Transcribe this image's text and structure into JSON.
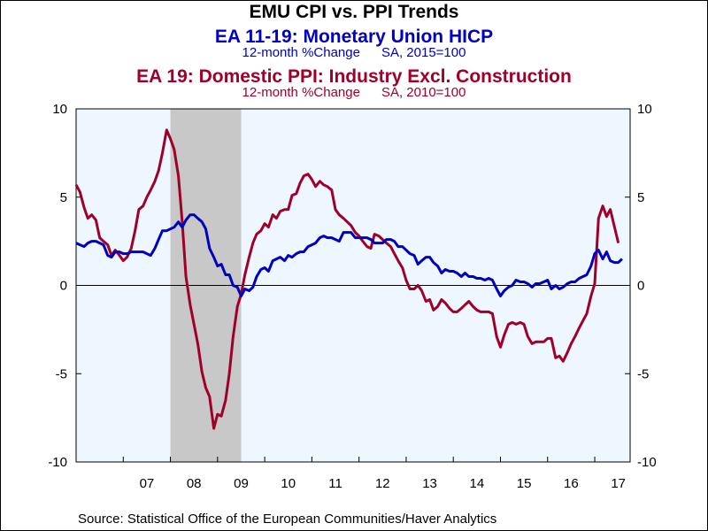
{
  "chart_data": {
    "type": "line",
    "title": "EMU CPI vs. PPI Trends",
    "series": [
      {
        "name": "EA 11-19: Monetary Union HICP",
        "units": "12-month %Change",
        "adjustment": "SA, 2015=100",
        "color": "#0000c0",
        "points": [
          [
            2006.0,
            2.4
          ],
          [
            2006.08,
            2.3
          ],
          [
            2006.17,
            2.2
          ],
          [
            2006.25,
            2.4
          ],
          [
            2006.33,
            2.5
          ],
          [
            2006.42,
            2.5
          ],
          [
            2006.5,
            2.4
          ],
          [
            2006.58,
            2.3
          ],
          [
            2006.67,
            1.7
          ],
          [
            2006.75,
            1.6
          ],
          [
            2006.83,
            1.9
          ],
          [
            2006.92,
            1.9
          ],
          [
            2007.0,
            1.8
          ],
          [
            2007.08,
            1.8
          ],
          [
            2007.17,
            1.9
          ],
          [
            2007.25,
            1.9
          ],
          [
            2007.33,
            1.9
          ],
          [
            2007.42,
            1.9
          ],
          [
            2007.5,
            1.8
          ],
          [
            2007.58,
            1.7
          ],
          [
            2007.67,
            2.1
          ],
          [
            2007.75,
            2.6
          ],
          [
            2007.83,
            3.1
          ],
          [
            2007.92,
            3.1
          ],
          [
            2008.0,
            3.2
          ],
          [
            2008.08,
            3.3
          ],
          [
            2008.17,
            3.6
          ],
          [
            2008.25,
            3.3
          ],
          [
            2008.33,
            3.7
          ],
          [
            2008.42,
            4.0
          ],
          [
            2008.5,
            4.0
          ],
          [
            2008.58,
            3.8
          ],
          [
            2008.67,
            3.6
          ],
          [
            2008.75,
            3.2
          ],
          [
            2008.83,
            2.1
          ],
          [
            2008.92,
            1.6
          ],
          [
            2009.0,
            1.1
          ],
          [
            2009.08,
            1.2
          ],
          [
            2009.17,
            0.6
          ],
          [
            2009.25,
            0.6
          ],
          [
            2009.33,
            0.0
          ],
          [
            2009.42,
            -0.1
          ],
          [
            2009.5,
            -0.6
          ],
          [
            2009.58,
            -0.2
          ],
          [
            2009.67,
            -0.3
          ],
          [
            2009.75,
            -0.1
          ],
          [
            2009.83,
            0.5
          ],
          [
            2009.92,
            0.9
          ],
          [
            2010.0,
            1.0
          ],
          [
            2010.08,
            0.8
          ],
          [
            2010.17,
            1.4
          ],
          [
            2010.25,
            1.5
          ],
          [
            2010.33,
            1.6
          ],
          [
            2010.42,
            1.4
          ],
          [
            2010.5,
            1.7
          ],
          [
            2010.58,
            1.6
          ],
          [
            2010.67,
            1.8
          ],
          [
            2010.75,
            1.9
          ],
          [
            2010.83,
            1.9
          ],
          [
            2010.92,
            2.2
          ],
          [
            2011.0,
            2.3
          ],
          [
            2011.08,
            2.4
          ],
          [
            2011.17,
            2.7
          ],
          [
            2011.25,
            2.8
          ],
          [
            2011.33,
            2.7
          ],
          [
            2011.42,
            2.7
          ],
          [
            2011.5,
            2.6
          ],
          [
            2011.58,
            2.5
          ],
          [
            2011.67,
            3.0
          ],
          [
            2011.75,
            3.0
          ],
          [
            2011.83,
            3.0
          ],
          [
            2011.92,
            2.7
          ],
          [
            2012.0,
            2.7
          ],
          [
            2012.08,
            2.7
          ],
          [
            2012.17,
            2.7
          ],
          [
            2012.25,
            2.6
          ],
          [
            2012.33,
            2.4
          ],
          [
            2012.42,
            2.4
          ],
          [
            2012.5,
            2.4
          ],
          [
            2012.58,
            2.6
          ],
          [
            2012.67,
            2.6
          ],
          [
            2012.75,
            2.5
          ],
          [
            2012.83,
            2.2
          ],
          [
            2012.92,
            2.2
          ],
          [
            2013.0,
            2.0
          ],
          [
            2013.08,
            1.8
          ],
          [
            2013.17,
            1.7
          ],
          [
            2013.25,
            1.2
          ],
          [
            2013.33,
            1.4
          ],
          [
            2013.42,
            1.6
          ],
          [
            2013.5,
            1.6
          ],
          [
            2013.58,
            1.3
          ],
          [
            2013.67,
            1.1
          ],
          [
            2013.75,
            0.7
          ],
          [
            2013.83,
            0.9
          ],
          [
            2013.92,
            0.8
          ],
          [
            2014.0,
            0.8
          ],
          [
            2014.08,
            0.7
          ],
          [
            2014.17,
            0.5
          ],
          [
            2014.25,
            0.7
          ],
          [
            2014.33,
            0.5
          ],
          [
            2014.42,
            0.5
          ],
          [
            2014.5,
            0.4
          ],
          [
            2014.58,
            0.4
          ],
          [
            2014.67,
            0.3
          ],
          [
            2014.75,
            0.4
          ],
          [
            2014.83,
            0.3
          ],
          [
            2014.92,
            -0.2
          ],
          [
            2015.0,
            -0.6
          ],
          [
            2015.08,
            -0.3
          ],
          [
            2015.17,
            -0.1
          ],
          [
            2015.25,
            0.0
          ],
          [
            2015.33,
            0.3
          ],
          [
            2015.42,
            0.2
          ],
          [
            2015.5,
            0.2
          ],
          [
            2015.58,
            0.1
          ],
          [
            2015.67,
            -0.1
          ],
          [
            2015.75,
            0.1
          ],
          [
            2015.83,
            0.1
          ],
          [
            2015.92,
            0.2
          ],
          [
            2016.0,
            0.3
          ],
          [
            2016.08,
            -0.2
          ],
          [
            2016.17,
            0.0
          ],
          [
            2016.25,
            -0.2
          ],
          [
            2016.33,
            -0.1
          ],
          [
            2016.42,
            0.1
          ],
          [
            2016.5,
            0.2
          ],
          [
            2016.58,
            0.2
          ],
          [
            2016.67,
            0.4
          ],
          [
            2016.75,
            0.5
          ],
          [
            2016.83,
            0.6
          ],
          [
            2016.92,
            1.1
          ],
          [
            2017.0,
            1.8
          ],
          [
            2017.08,
            2.0
          ],
          [
            2017.17,
            1.5
          ],
          [
            2017.25,
            1.9
          ],
          [
            2017.33,
            1.4
          ],
          [
            2017.42,
            1.3
          ],
          [
            2017.5,
            1.3
          ],
          [
            2017.58,
            1.5
          ]
        ]
      },
      {
        "name": "EA 19: Domestic PPI: Industry Excl. Construction",
        "units": "12-month %Change",
        "adjustment": "SA, 2010=100",
        "color": "#a00028",
        "points": [
          [
            2006.0,
            5.7
          ],
          [
            2006.08,
            5.3
          ],
          [
            2006.17,
            4.4
          ],
          [
            2006.25,
            3.8
          ],
          [
            2006.33,
            4.0
          ],
          [
            2006.42,
            3.7
          ],
          [
            2006.5,
            2.7
          ],
          [
            2006.58,
            2.5
          ],
          [
            2006.67,
            2.3
          ],
          [
            2006.75,
            1.7
          ],
          [
            2006.83,
            2.0
          ],
          [
            2006.92,
            1.7
          ],
          [
            2007.0,
            1.4
          ],
          [
            2007.08,
            1.6
          ],
          [
            2007.17,
            2.1
          ],
          [
            2007.25,
            3.1
          ],
          [
            2007.33,
            4.3
          ],
          [
            2007.42,
            4.5
          ],
          [
            2007.5,
            5.0
          ],
          [
            2007.58,
            5.4
          ],
          [
            2007.67,
            5.9
          ],
          [
            2007.75,
            6.5
          ],
          [
            2007.83,
            7.5
          ],
          [
            2007.92,
            8.8
          ],
          [
            2008.0,
            8.3
          ],
          [
            2008.08,
            7.7
          ],
          [
            2008.17,
            6.2
          ],
          [
            2008.25,
            3.6
          ],
          [
            2008.33,
            0.5
          ],
          [
            2008.42,
            -1.1
          ],
          [
            2008.5,
            -2.2
          ],
          [
            2008.58,
            -3.3
          ],
          [
            2008.67,
            -4.9
          ],
          [
            2008.75,
            -5.8
          ],
          [
            2008.83,
            -6.3
          ],
          [
            2008.92,
            -8.1
          ],
          [
            2009.0,
            -7.3
          ],
          [
            2009.08,
            -7.4
          ],
          [
            2009.17,
            -6.5
          ],
          [
            2009.25,
            -5.0
          ],
          [
            2009.33,
            -2.9
          ],
          [
            2009.42,
            -1.2
          ],
          [
            2009.5,
            -0.5
          ],
          [
            2009.58,
            0.6
          ],
          [
            2009.67,
            1.6
          ],
          [
            2009.75,
            2.4
          ],
          [
            2009.83,
            2.9
          ],
          [
            2009.92,
            3.1
          ],
          [
            2010.0,
            3.5
          ],
          [
            2010.08,
            3.3
          ],
          [
            2010.17,
            4.0
          ],
          [
            2010.25,
            3.8
          ],
          [
            2010.33,
            4.2
          ],
          [
            2010.42,
            4.3
          ],
          [
            2010.5,
            4.3
          ],
          [
            2010.58,
            5.1
          ],
          [
            2010.67,
            5.2
          ],
          [
            2010.75,
            5.8
          ],
          [
            2010.83,
            6.2
          ],
          [
            2010.92,
            6.3
          ],
          [
            2011.0,
            6.0
          ],
          [
            2011.08,
            5.6
          ],
          [
            2011.17,
            5.9
          ],
          [
            2011.25,
            5.7
          ],
          [
            2011.33,
            5.6
          ],
          [
            2011.42,
            5.4
          ],
          [
            2011.5,
            4.3
          ],
          [
            2011.58,
            4.0
          ],
          [
            2011.67,
            3.8
          ],
          [
            2011.75,
            3.6
          ],
          [
            2011.83,
            3.4
          ],
          [
            2011.92,
            3.0
          ],
          [
            2012.0,
            2.8
          ],
          [
            2012.08,
            2.5
          ],
          [
            2012.17,
            2.2
          ],
          [
            2012.25,
            2.1
          ],
          [
            2012.33,
            2.9
          ],
          [
            2012.42,
            2.8
          ],
          [
            2012.5,
            2.6
          ],
          [
            2012.58,
            2.4
          ],
          [
            2012.67,
            2.2
          ],
          [
            2012.75,
            1.8
          ],
          [
            2012.83,
            1.4
          ],
          [
            2012.92,
            1.0
          ],
          [
            2013.0,
            0.3
          ],
          [
            2013.08,
            -0.2
          ],
          [
            2013.17,
            -0.2
          ],
          [
            2013.25,
            0.0
          ],
          [
            2013.33,
            -0.3
          ],
          [
            2013.42,
            -0.9
          ],
          [
            2013.5,
            -0.8
          ],
          [
            2013.58,
            -1.4
          ],
          [
            2013.67,
            -1.2
          ],
          [
            2013.75,
            -0.8
          ],
          [
            2013.83,
            -1.0
          ],
          [
            2013.92,
            -1.3
          ],
          [
            2014.0,
            -1.5
          ],
          [
            2014.08,
            -1.5
          ],
          [
            2014.17,
            -1.3
          ],
          [
            2014.25,
            -1.1
          ],
          [
            2014.33,
            -0.9
          ],
          [
            2014.42,
            -1.2
          ],
          [
            2014.5,
            -1.4
          ],
          [
            2014.58,
            -1.5
          ],
          [
            2014.67,
            -1.5
          ],
          [
            2014.75,
            -1.5
          ],
          [
            2014.83,
            -1.6
          ],
          [
            2014.92,
            -2.9
          ],
          [
            2015.0,
            -3.5
          ],
          [
            2015.08,
            -2.8
          ],
          [
            2015.17,
            -2.2
          ],
          [
            2015.25,
            -2.1
          ],
          [
            2015.33,
            -2.2
          ],
          [
            2015.42,
            -2.1
          ],
          [
            2015.5,
            -2.2
          ],
          [
            2015.58,
            -2.9
          ],
          [
            2015.67,
            -3.3
          ],
          [
            2015.75,
            -3.2
          ],
          [
            2015.83,
            -3.2
          ],
          [
            2015.92,
            -3.2
          ],
          [
            2016.0,
            -3.0
          ],
          [
            2016.08,
            -3.0
          ],
          [
            2016.17,
            -4.1
          ],
          [
            2016.25,
            -4.0
          ],
          [
            2016.33,
            -4.3
          ],
          [
            2016.42,
            -3.8
          ],
          [
            2016.5,
            -3.3
          ],
          [
            2016.58,
            -2.9
          ],
          [
            2016.67,
            -2.4
          ],
          [
            2016.75,
            -2.0
          ],
          [
            2016.83,
            -1.6
          ],
          [
            2016.92,
            -0.6
          ],
          [
            2017.0,
            0.1
          ],
          [
            2017.08,
            3.8
          ],
          [
            2017.17,
            4.5
          ],
          [
            2017.25,
            3.9
          ],
          [
            2017.33,
            4.3
          ],
          [
            2017.42,
            3.3
          ],
          [
            2017.5,
            2.4
          ]
        ]
      }
    ],
    "x_axis": {
      "range": [
        2006,
        2017.75
      ],
      "tick_labels": [
        {
          "label": "07",
          "at": 2007.5
        },
        {
          "label": "08",
          "at": 2008.5
        },
        {
          "label": "09",
          "at": 2009.5
        },
        {
          "label": "10",
          "at": 2010.5
        },
        {
          "label": "11",
          "at": 2011.5
        },
        {
          "label": "12",
          "at": 2012.5
        },
        {
          "label": "13",
          "at": 2013.5
        },
        {
          "label": "14",
          "at": 2014.5
        },
        {
          "label": "15",
          "at": 2015.5
        },
        {
          "label": "16",
          "at": 2016.5
        },
        {
          "label": "17",
          "at": 2017.5
        }
      ],
      "year_boundaries": [
        2007,
        2008,
        2009,
        2010,
        2011,
        2012,
        2013,
        2014,
        2015,
        2016,
        2017
      ]
    },
    "y_axis": {
      "range": [
        -10,
        10
      ],
      "ticks": [
        -10,
        -5,
        0,
        5,
        10
      ],
      "tick_labels": [
        "-10",
        "-5",
        "0",
        "5",
        "10"
      ],
      "mirrored_right": true
    },
    "zero_line": true,
    "recession_shading": [
      [
        2008.0,
        2009.5
      ]
    ],
    "grid": false,
    "plot_background": "#eef6ff",
    "recession_color": "#c8c8c8"
  },
  "source": "Source:  Statistical Office of the European Communities/Haver Analytics"
}
